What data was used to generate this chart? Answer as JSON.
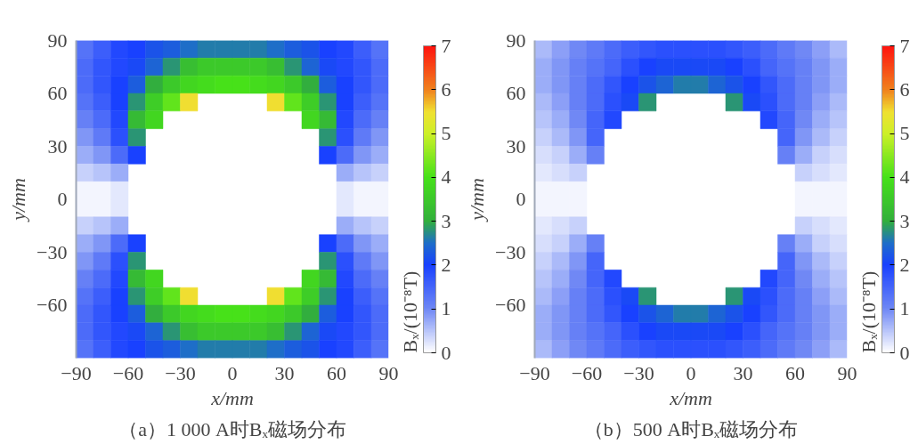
{
  "chart_data": [
    {
      "type": "heatmap",
      "title": "（a）1 000 A时Bₓ磁场分布",
      "xlabel": "x/mm",
      "ylabel": "y/mm",
      "clabel": "Bₓ/(10⁻⁸T)",
      "xlim": [
        -90,
        90
      ],
      "ylim": [
        -90,
        90
      ],
      "xticks": [
        -90,
        -60,
        -30,
        0,
        30,
        60,
        90
      ],
      "yticks": [
        -60,
        -30,
        0,
        30,
        60,
        90
      ],
      "clim": [
        0,
        7
      ],
      "cticks": [
        0,
        1,
        2,
        3,
        4,
        5,
        6,
        7
      ],
      "cells": [
        [
          1.3,
          1.6,
          1.9,
          2.0,
          2.2,
          2.3,
          2.5,
          2.6,
          2.6,
          2.6,
          2.6,
          2.5,
          2.3,
          2.2,
          2.0,
          1.9,
          1.6,
          1.3
        ],
        [
          1.4,
          1.7,
          1.9,
          2.1,
          2.4,
          2.8,
          3.3,
          3.5,
          3.5,
          3.5,
          3.5,
          3.3,
          2.8,
          2.4,
          2.1,
          1.9,
          1.7,
          1.4
        ],
        [
          1.4,
          1.7,
          2.0,
          2.3,
          3.0,
          3.5,
          3.8,
          3.9,
          4.0,
          4.0,
          3.9,
          3.8,
          3.5,
          3.0,
          2.3,
          2.0,
          1.7,
          1.4
        ],
        [
          1.3,
          1.6,
          2.0,
          2.8,
          3.6,
          4.2,
          5.5,
          null,
          null,
          null,
          null,
          5.5,
          4.2,
          3.6,
          2.8,
          2.0,
          1.6,
          1.3
        ],
        [
          1.1,
          1.4,
          1.9,
          3.2,
          3.8,
          null,
          null,
          null,
          null,
          null,
          null,
          null,
          null,
          3.8,
          3.2,
          1.9,
          1.4,
          1.1
        ],
        [
          0.9,
          1.2,
          1.8,
          2.8,
          null,
          null,
          null,
          null,
          null,
          null,
          null,
          null,
          null,
          null,
          2.8,
          1.8,
          1.2,
          0.9
        ],
        [
          0.7,
          0.9,
          1.4,
          2.0,
          null,
          null,
          null,
          null,
          null,
          null,
          null,
          null,
          null,
          null,
          2.0,
          1.4,
          0.9,
          0.7
        ],
        [
          0.4,
          0.5,
          0.7,
          null,
          null,
          null,
          null,
          null,
          null,
          null,
          null,
          null,
          null,
          null,
          null,
          0.7,
          0.5,
          0.4
        ],
        [
          0.1,
          0.1,
          0.2,
          null,
          null,
          null,
          null,
          null,
          null,
          null,
          null,
          null,
          null,
          null,
          null,
          0.2,
          0.1,
          0.1
        ],
        [
          0.1,
          0.1,
          0.2,
          null,
          null,
          null,
          null,
          null,
          null,
          null,
          null,
          null,
          null,
          null,
          null,
          0.2,
          0.1,
          0.1
        ],
        [
          0.4,
          0.5,
          0.7,
          null,
          null,
          null,
          null,
          null,
          null,
          null,
          null,
          null,
          null,
          null,
          null,
          0.7,
          0.5,
          0.4
        ],
        [
          0.7,
          0.9,
          1.4,
          2.0,
          null,
          null,
          null,
          null,
          null,
          null,
          null,
          null,
          null,
          null,
          2.0,
          1.4,
          0.9,
          0.7
        ],
        [
          0.9,
          1.2,
          1.8,
          2.8,
          null,
          null,
          null,
          null,
          null,
          null,
          null,
          null,
          null,
          null,
          2.8,
          1.8,
          1.2,
          0.9
        ],
        [
          1.1,
          1.4,
          1.9,
          3.2,
          3.8,
          null,
          null,
          null,
          null,
          null,
          null,
          null,
          null,
          3.8,
          3.2,
          1.9,
          1.4,
          1.1
        ],
        [
          1.3,
          1.6,
          2.0,
          2.8,
          3.6,
          4.2,
          5.5,
          null,
          null,
          null,
          null,
          5.5,
          4.2,
          3.6,
          2.8,
          2.0,
          1.6,
          1.3
        ],
        [
          1.4,
          1.7,
          2.0,
          2.3,
          3.0,
          3.5,
          3.8,
          3.9,
          4.0,
          4.0,
          3.9,
          3.8,
          3.5,
          3.0,
          2.3,
          2.0,
          1.7,
          1.4
        ],
        [
          1.4,
          1.7,
          1.9,
          2.1,
          2.4,
          2.8,
          3.3,
          3.5,
          3.5,
          3.5,
          3.5,
          3.3,
          2.8,
          2.4,
          2.1,
          1.9,
          1.7,
          1.4
        ],
        [
          1.3,
          1.6,
          1.9,
          2.0,
          2.2,
          2.3,
          2.5,
          2.6,
          2.6,
          2.6,
          2.6,
          2.5,
          2.3,
          2.2,
          2.0,
          1.9,
          1.6,
          1.3
        ]
      ]
    },
    {
      "type": "heatmap",
      "title": "（b）500 A时Bₓ磁场分布",
      "xlabel": "x/mm",
      "ylabel": "y/mm",
      "clabel": "Bₓ/(10⁻⁸T)",
      "xlim": [
        -90,
        90
      ],
      "ylim": [
        -90,
        90
      ],
      "xticks": [
        -90,
        -60,
        -30,
        0,
        30,
        60,
        90
      ],
      "yticks": [
        -60,
        -30,
        0,
        30,
        60,
        90
      ],
      "clim": [
        0,
        7
      ],
      "cticks": [
        0,
        1,
        2,
        3,
        4,
        5,
        6,
        7
      ],
      "cells": [
        [
          0.6,
          0.8,
          1.0,
          1.2,
          1.4,
          1.6,
          1.7,
          1.8,
          1.8,
          1.8,
          1.8,
          1.7,
          1.6,
          1.4,
          1.2,
          1.0,
          0.8,
          0.6
        ],
        [
          0.7,
          0.9,
          1.1,
          1.3,
          1.5,
          1.8,
          2.0,
          2.1,
          2.1,
          2.1,
          2.1,
          2.0,
          1.8,
          1.5,
          1.3,
          1.1,
          0.9,
          0.7
        ],
        [
          0.7,
          0.9,
          1.1,
          1.4,
          1.7,
          2.0,
          2.2,
          2.4,
          2.6,
          2.6,
          2.4,
          2.2,
          2.0,
          1.7,
          1.4,
          1.1,
          0.9,
          0.7
        ],
        [
          0.6,
          0.8,
          1.1,
          1.4,
          1.8,
          2.1,
          2.8,
          null,
          null,
          null,
          null,
          2.8,
          2.1,
          1.8,
          1.4,
          1.1,
          0.8,
          0.6
        ],
        [
          0.5,
          0.7,
          1.0,
          1.5,
          1.9,
          null,
          null,
          null,
          null,
          null,
          null,
          null,
          null,
          1.9,
          1.5,
          1.0,
          0.7,
          0.5
        ],
        [
          0.4,
          0.6,
          0.9,
          1.5,
          null,
          null,
          null,
          null,
          null,
          null,
          null,
          null,
          null,
          null,
          1.5,
          0.9,
          0.6,
          0.4
        ],
        [
          0.3,
          0.4,
          0.7,
          1.1,
          null,
          null,
          null,
          null,
          null,
          null,
          null,
          null,
          null,
          null,
          1.1,
          0.7,
          0.4,
          0.3
        ],
        [
          0.2,
          0.3,
          0.4,
          null,
          null,
          null,
          null,
          null,
          null,
          null,
          null,
          null,
          null,
          null,
          null,
          0.4,
          0.3,
          0.2
        ],
        [
          0.1,
          0.1,
          0.1,
          null,
          null,
          null,
          null,
          null,
          null,
          null,
          null,
          null,
          null,
          null,
          null,
          0.1,
          0.1,
          0.1
        ],
        [
          0.1,
          0.1,
          0.1,
          null,
          null,
          null,
          null,
          null,
          null,
          null,
          null,
          null,
          null,
          null,
          null,
          0.1,
          0.1,
          0.1
        ],
        [
          0.2,
          0.3,
          0.4,
          null,
          null,
          null,
          null,
          null,
          null,
          null,
          null,
          null,
          null,
          null,
          null,
          0.4,
          0.3,
          0.2
        ],
        [
          0.3,
          0.4,
          0.7,
          1.1,
          null,
          null,
          null,
          null,
          null,
          null,
          null,
          null,
          null,
          null,
          1.1,
          0.7,
          0.4,
          0.3
        ],
        [
          0.4,
          0.6,
          0.9,
          1.5,
          null,
          null,
          null,
          null,
          null,
          null,
          null,
          null,
          null,
          null,
          1.5,
          0.9,
          0.6,
          0.4
        ],
        [
          0.5,
          0.7,
          1.0,
          1.5,
          1.9,
          null,
          null,
          null,
          null,
          null,
          null,
          null,
          null,
          1.9,
          1.5,
          1.0,
          0.7,
          0.5
        ],
        [
          0.6,
          0.8,
          1.1,
          1.4,
          1.8,
          2.1,
          2.8,
          null,
          null,
          null,
          null,
          2.8,
          2.1,
          1.8,
          1.4,
          1.1,
          0.8,
          0.6
        ],
        [
          0.7,
          0.9,
          1.1,
          1.4,
          1.7,
          2.0,
          2.2,
          2.4,
          2.6,
          2.6,
          2.4,
          2.2,
          2.0,
          1.7,
          1.4,
          1.1,
          0.9,
          0.7
        ],
        [
          0.7,
          0.9,
          1.1,
          1.3,
          1.5,
          1.8,
          2.0,
          2.1,
          2.1,
          2.1,
          2.1,
          2.0,
          1.8,
          1.5,
          1.3,
          1.1,
          0.9,
          0.7
        ],
        [
          0.6,
          0.8,
          1.0,
          1.2,
          1.4,
          1.6,
          1.7,
          1.8,
          1.8,
          1.8,
          1.8,
          1.7,
          1.6,
          1.4,
          1.2,
          1.0,
          0.8,
          0.6
        ]
      ]
    }
  ]
}
